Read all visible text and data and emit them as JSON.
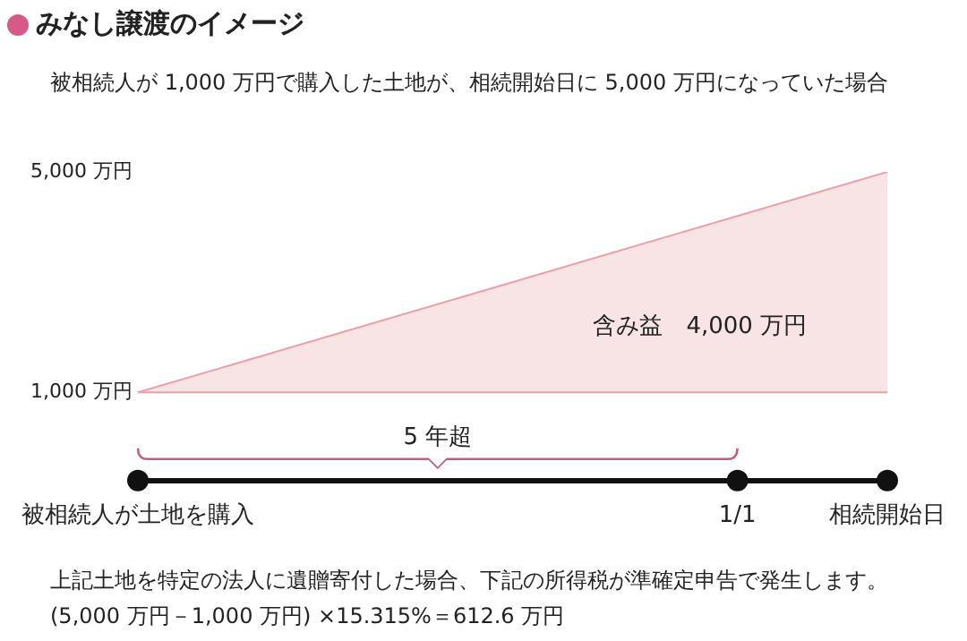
{
  "chart_data": {
    "type": "area",
    "title": "みなし譲渡のイメージ",
    "subtitle": "被相続人が 1,000 万円で購入した土地が、相続開始日に 5,000 万円になっていた場合",
    "categories": [
      "被相続人が土地を購入",
      null,
      null,
      null,
      "1/1",
      "相続開始日"
    ],
    "series": [
      {
        "color": "#e8a2aa",
        "values": [
          1000,
          1800,
          2600,
          3400,
          4200,
          5000
        ]
      }
    ],
    "ylim": [
      -600,
      5000
    ],
    "yticks": [
      {
        "value": 1000,
        "label": "1,000 万円"
      },
      {
        "value": 5000,
        "label": "5,000 万円"
      }
    ],
    "grid": false,
    "legend": false,
    "ref_lines": [
      {
        "axis": "y",
        "value": 1000,
        "color": "#e8a2aa"
      }
    ],
    "annotations": [
      "含み益　4,000 万円",
      "5 年超",
      "上記土地を特定の法人に遺贈寄付した場合、下記の所得税が準確定申告で発生します。",
      "(5,000 万円－1,000 万円) ×15.315%＝612.6 万円"
    ]
  }
}
